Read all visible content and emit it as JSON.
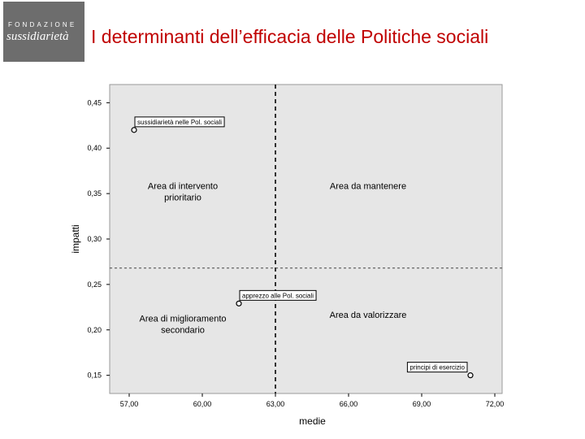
{
  "logo": {
    "line1": "FONDAZIONE",
    "line2": "sussidiarietà"
  },
  "page_title": "I determinanti dell’efficacia delle Politiche sociali",
  "chart_data": {
    "type": "scatter",
    "title": "",
    "xlabel": "medie",
    "ylabel": "impatti",
    "xlim": [
      56.2,
      72.3
    ],
    "ylim": [
      0.13,
      0.47
    ],
    "x_ticks": [
      57,
      60,
      63,
      66,
      69,
      72
    ],
    "x_tick_labels": [
      "57,00",
      "60,00",
      "63,00",
      "66,00",
      "69,00",
      "72,00"
    ],
    "y_ticks": [
      0.15,
      0.2,
      0.25,
      0.3,
      0.35,
      0.4,
      0.45
    ],
    "y_tick_labels": [
      "0,15",
      "0,20",
      "0,25",
      "0,30",
      "0,35",
      "0,40",
      "0,45"
    ],
    "grid": false,
    "reference_lines": {
      "x": 63.0,
      "y": 0.268
    },
    "points": [
      {
        "label": "sussidiarietà nelle Pol. sociali",
        "x": 57.2,
        "y": 0.42
      },
      {
        "label": "apprezzo alle Pol. sociali",
        "x": 61.5,
        "y": 0.229
      },
      {
        "label": "principi di esercizio",
        "x": 71.0,
        "y": 0.15
      }
    ],
    "quadrants": [
      {
        "line1": "Area di intervento",
        "line2": "prioritario",
        "x": 59.2,
        "y": 0.355
      },
      {
        "line1": "Area da mantenere",
        "line2": "",
        "x": 66.8,
        "y": 0.355
      },
      {
        "line1": "Area di miglioramento",
        "line2": "secondario",
        "x": 59.2,
        "y": 0.209
      },
      {
        "line1": "Area da valorizzare",
        "line2": "",
        "x": 66.8,
        "y": 0.213
      }
    ],
    "colors": {
      "plot_bg": "#e6e6e6",
      "title": "#c00000",
      "axis": "#000000"
    }
  }
}
